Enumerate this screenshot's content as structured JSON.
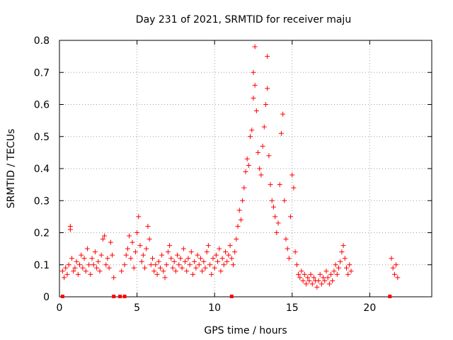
{
  "chart_data": {
    "type": "scatter",
    "title": "Day 231 of 2021, SRMTID for receiver maju",
    "xlabel": "GPS time / hours",
    "ylabel": "SRMTID / TECUs",
    "xlim": [
      0,
      24
    ],
    "ylim": [
      0,
      0.8
    ],
    "grid": true,
    "x_ticks": [
      0,
      5,
      10,
      15,
      20
    ],
    "x_tick_labels": [
      "0",
      "5",
      "10",
      "15",
      "20"
    ],
    "y_ticks": [
      0,
      0.1,
      0.2,
      0.3,
      0.4,
      0.5,
      0.6,
      0.7,
      0.8
    ],
    "y_tick_labels": [
      "0",
      "0.1",
      "0.2",
      "0.3",
      "0.4",
      "0.5",
      "0.6",
      "0.7",
      "0.8"
    ],
    "marker": "plus",
    "color": "#ff0000",
    "series": [
      {
        "name": "SRMTID",
        "points": [
          [
            0.2,
            0.08
          ],
          [
            0.3,
            0.06
          ],
          [
            0.4,
            0.09
          ],
          [
            0.5,
            0.07
          ],
          [
            0.6,
            0.1
          ],
          [
            0.7,
            0.22
          ],
          [
            0.7,
            0.21
          ],
          [
            0.8,
            0.12
          ],
          [
            0.9,
            0.08
          ],
          [
            1.0,
            0.09
          ],
          [
            1.1,
            0.11
          ],
          [
            1.2,
            0.07
          ],
          [
            1.3,
            0.1
          ],
          [
            1.4,
            0.13
          ],
          [
            1.5,
            0.09
          ],
          [
            1.6,
            0.12
          ],
          [
            1.7,
            0.08
          ],
          [
            1.8,
            0.15
          ],
          [
            1.9,
            0.1
          ],
          [
            2.0,
            0.07
          ],
          [
            2.1,
            0.12
          ],
          [
            2.2,
            0.1
          ],
          [
            2.3,
            0.14
          ],
          [
            2.4,
            0.09
          ],
          [
            2.5,
            0.11
          ],
          [
            2.6,
            0.08
          ],
          [
            2.7,
            0.13
          ],
          [
            2.8,
            0.18
          ],
          [
            2.9,
            0.19
          ],
          [
            3.0,
            0.1
          ],
          [
            3.1,
            0.12
          ],
          [
            3.2,
            0.09
          ],
          [
            3.3,
            0.17
          ],
          [
            3.4,
            0.13
          ],
          [
            3.5,
            0.06
          ],
          [
            4.0,
            0.08
          ],
          [
            4.2,
            0.1
          ],
          [
            4.3,
            0.13
          ],
          [
            4.4,
            0.15
          ],
          [
            4.5,
            0.19
          ],
          [
            4.6,
            0.12
          ],
          [
            4.7,
            0.17
          ],
          [
            4.8,
            0.09
          ],
          [
            4.9,
            0.14
          ],
          [
            5.0,
            0.2
          ],
          [
            5.1,
            0.25
          ],
          [
            5.2,
            0.16
          ],
          [
            5.3,
            0.11
          ],
          [
            5.4,
            0.13
          ],
          [
            5.5,
            0.09
          ],
          [
            5.6,
            0.15
          ],
          [
            5.7,
            0.22
          ],
          [
            5.8,
            0.18
          ],
          [
            5.9,
            0.1
          ],
          [
            6.0,
            0.12
          ],
          [
            6.1,
            0.08
          ],
          [
            6.2,
            0.1
          ],
          [
            6.3,
            0.07
          ],
          [
            6.4,
            0.11
          ],
          [
            6.5,
            0.09
          ],
          [
            6.6,
            0.13
          ],
          [
            6.7,
            0.08
          ],
          [
            6.8,
            0.06
          ],
          [
            6.9,
            0.1
          ],
          [
            7.0,
            0.14
          ],
          [
            7.1,
            0.16
          ],
          [
            7.2,
            0.12
          ],
          [
            7.3,
            0.09
          ],
          [
            7.4,
            0.11
          ],
          [
            7.5,
            0.08
          ],
          [
            7.6,
            0.13
          ],
          [
            7.7,
            0.1
          ],
          [
            7.8,
            0.12
          ],
          [
            7.9,
            0.09
          ],
          [
            8.0,
            0.15
          ],
          [
            8.1,
            0.11
          ],
          [
            8.2,
            0.08
          ],
          [
            8.3,
            0.12
          ],
          [
            8.4,
            0.1
          ],
          [
            8.5,
            0.14
          ],
          [
            8.6,
            0.07
          ],
          [
            8.7,
            0.11
          ],
          [
            8.8,
            0.09
          ],
          [
            8.9,
            0.13
          ],
          [
            9.0,
            0.1
          ],
          [
            9.1,
            0.12
          ],
          [
            9.2,
            0.08
          ],
          [
            9.3,
            0.11
          ],
          [
            9.4,
            0.09
          ],
          [
            9.5,
            0.14
          ],
          [
            9.6,
            0.16
          ],
          [
            9.7,
            0.1
          ],
          [
            9.8,
            0.07
          ],
          [
            9.9,
            0.12
          ],
          [
            10.0,
            0.09
          ],
          [
            10.1,
            0.13
          ],
          [
            10.2,
            0.11
          ],
          [
            10.3,
            0.15
          ],
          [
            10.4,
            0.08
          ],
          [
            10.5,
            0.12
          ],
          [
            10.6,
            0.1
          ],
          [
            10.7,
            0.14
          ],
          [
            10.8,
            0.11
          ],
          [
            10.9,
            0.13
          ],
          [
            11.0,
            0.16
          ],
          [
            11.1,
            0.12
          ],
          [
            11.2,
            0.1
          ],
          [
            11.3,
            0.14
          ],
          [
            11.4,
            0.18
          ],
          [
            11.5,
            0.22
          ],
          [
            11.6,
            0.27
          ],
          [
            11.7,
            0.24
          ],
          [
            11.8,
            0.3
          ],
          [
            11.9,
            0.34
          ],
          [
            12.0,
            0.39
          ],
          [
            12.1,
            0.43
          ],
          [
            12.2,
            0.41
          ],
          [
            12.3,
            0.5
          ],
          [
            12.4,
            0.52
          ],
          [
            12.5,
            0.62
          ],
          [
            12.5,
            0.7
          ],
          [
            12.6,
            0.66
          ],
          [
            12.6,
            0.78
          ],
          [
            12.7,
            0.58
          ],
          [
            12.8,
            0.45
          ],
          [
            12.9,
            0.4
          ],
          [
            13.0,
            0.38
          ],
          [
            13.1,
            0.47
          ],
          [
            13.2,
            0.53
          ],
          [
            13.3,
            0.6
          ],
          [
            13.4,
            0.65
          ],
          [
            13.4,
            0.75
          ],
          [
            13.5,
            0.44
          ],
          [
            13.6,
            0.35
          ],
          [
            13.7,
            0.3
          ],
          [
            13.8,
            0.28
          ],
          [
            13.9,
            0.25
          ],
          [
            14.0,
            0.2
          ],
          [
            14.1,
            0.23
          ],
          [
            14.2,
            0.35
          ],
          [
            14.3,
            0.51
          ],
          [
            14.4,
            0.57
          ],
          [
            14.5,
            0.3
          ],
          [
            14.6,
            0.18
          ],
          [
            14.7,
            0.15
          ],
          [
            14.8,
            0.12
          ],
          [
            14.9,
            0.25
          ],
          [
            15.0,
            0.38
          ],
          [
            15.1,
            0.34
          ],
          [
            15.2,
            0.14
          ],
          [
            15.3,
            0.1
          ],
          [
            15.4,
            0.07
          ],
          [
            15.5,
            0.06
          ],
          [
            15.6,
            0.08
          ],
          [
            15.7,
            0.05
          ],
          [
            15.8,
            0.07
          ],
          [
            15.9,
            0.04
          ],
          [
            16.0,
            0.06
          ],
          [
            16.1,
            0.05
          ],
          [
            16.2,
            0.07
          ],
          [
            16.3,
            0.04
          ],
          [
            16.4,
            0.06
          ],
          [
            16.5,
            0.05
          ],
          [
            16.6,
            0.03
          ],
          [
            16.7,
            0.05
          ],
          [
            16.8,
            0.07
          ],
          [
            16.9,
            0.04
          ],
          [
            17.0,
            0.06
          ],
          [
            17.1,
            0.05
          ],
          [
            17.2,
            0.08
          ],
          [
            17.3,
            0.06
          ],
          [
            17.4,
            0.04
          ],
          [
            17.5,
            0.07
          ],
          [
            17.6,
            0.05
          ],
          [
            17.7,
            0.08
          ],
          [
            17.8,
            0.1
          ],
          [
            17.9,
            0.07
          ],
          [
            18.0,
            0.09
          ],
          [
            18.1,
            0.11
          ],
          [
            18.2,
            0.14
          ],
          [
            18.3,
            0.16
          ],
          [
            18.4,
            0.12
          ],
          [
            18.5,
            0.09
          ],
          [
            18.6,
            0.07
          ],
          [
            18.7,
            0.1
          ],
          [
            18.8,
            0.08
          ],
          [
            21.4,
            0.12
          ],
          [
            21.5,
            0.09
          ],
          [
            21.6,
            0.07
          ],
          [
            21.7,
            0.1
          ],
          [
            21.8,
            0.06
          ]
        ]
      }
    ],
    "gap_markers": [
      0.2,
      3.5,
      3.9,
      4.2,
      11.1,
      21.3
    ]
  }
}
